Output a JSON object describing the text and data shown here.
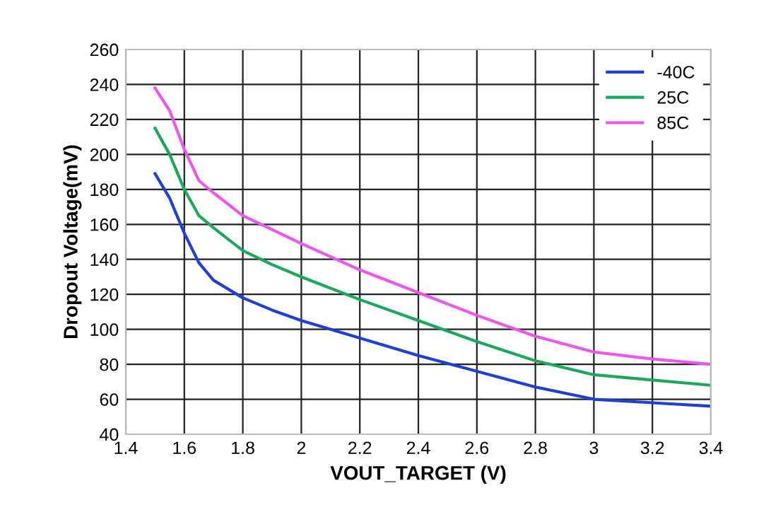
{
  "chart_data": {
    "type": "line",
    "xlabel": "VOUT_TARGET (V)",
    "ylabel": "Dropout Voltage(mV)",
    "x": [
      1.5,
      1.55,
      1.6,
      1.65,
      1.7,
      1.8,
      1.9,
      2.0,
      2.2,
      2.4,
      2.6,
      2.8,
      3.0,
      3.2,
      3.4
    ],
    "series": [
      {
        "name": "-40C",
        "color": "#1f3fd6",
        "values": [
          189,
          175,
          155,
          138,
          128,
          118,
          111,
          105,
          95,
          85,
          76,
          67,
          60,
          58,
          56
        ]
      },
      {
        "name": "25C",
        "color": "#1aa85a",
        "values": [
          215,
          200,
          180,
          165,
          158,
          145,
          137,
          130,
          117,
          105,
          93,
          82,
          74,
          71,
          68
        ]
      },
      {
        "name": "85C",
        "color": "#ee55ee",
        "values": [
          238,
          225,
          203,
          185,
          178,
          165,
          157,
          149,
          134,
          121,
          108,
          96,
          87,
          83,
          80
        ]
      }
    ],
    "xlim": [
      1.4,
      3.4
    ],
    "ylim": [
      40,
      260
    ],
    "xticks": [
      1.4,
      1.6,
      1.8,
      2,
      2.2,
      2.4,
      2.6,
      2.8,
      3,
      3.2,
      3.4
    ],
    "yticks": [
      40,
      60,
      80,
      100,
      120,
      140,
      160,
      180,
      200,
      220,
      240,
      260
    ],
    "grid": true,
    "legend": "top right",
    "line_style": "solid",
    "marker": "none"
  }
}
